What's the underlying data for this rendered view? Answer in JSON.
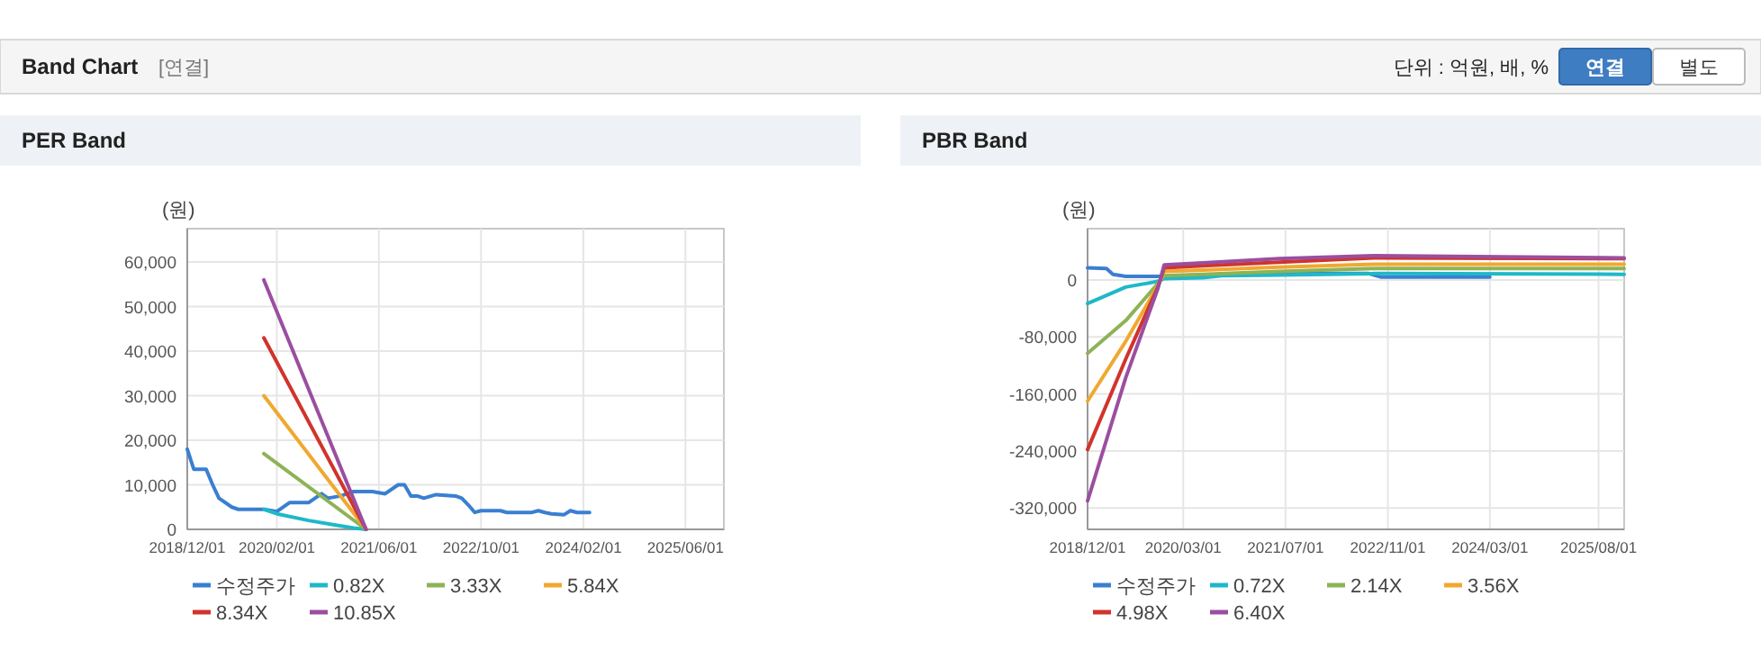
{
  "chart_data": [
    {
      "type": "other",
      "title": "Band Chart",
      "annotations": [
        "[연결]",
        "단위 : 억원, 배, %",
        "연결",
        "별도"
      ]
    },
    {
      "type": "line",
      "title": "PER Band",
      "ylabel": "(원)",
      "xlim": [
        "2018-12-01",
        "2025-12-01"
      ],
      "xticks": [
        {
          "value": "2018-12-01",
          "label": "2018/12/01"
        },
        {
          "value": "2020-02-01",
          "label": "2020/02/01"
        },
        {
          "value": "2021-06-01",
          "label": "2021/06/01"
        },
        {
          "value": "2022-10-01",
          "label": "2022/10/01"
        },
        {
          "value": "2024-02-01",
          "label": "2024/02/01"
        },
        {
          "value": "2025-06-01",
          "label": "2025/06/01"
        }
      ],
      "ylim": [
        0,
        67500
      ],
      "yticks": [
        0,
        {
          "value": 10000,
          "label": "10,000"
        },
        {
          "value": 20000,
          "label": "20,000"
        },
        {
          "value": 30000,
          "label": "30,000"
        },
        {
          "value": 40000,
          "label": "40,000"
        },
        {
          "value": 50000,
          "label": "50,000"
        },
        {
          "value": 60000,
          "label": "60,000"
        }
      ],
      "grid": true,
      "legend": "bottom",
      "marker": "none",
      "line_style": "solid",
      "series": [
        {
          "name": "수정주가",
          "color": "#3a7fd0",
          "x": [
            "2018-12-01",
            "2019-01-01",
            "2019-03-01",
            "2019-04-01",
            "2019-05-01",
            "2019-07-01",
            "2019-08-01",
            "2019-12-01",
            "2020-02-01",
            "2020-04-01",
            "2020-07-01",
            "2020-08-01",
            "2020-09-01",
            "2020-10-01",
            "2020-12-01",
            "2021-02-01",
            "2021-05-01",
            "2021-07-01",
            "2021-09-01",
            "2021-10-01",
            "2021-11-01",
            "2021-12-01",
            "2022-01-01",
            "2022-03-01",
            "2022-06-01",
            "2022-07-01",
            "2022-08-01",
            "2022-09-01",
            "2022-10-01",
            "2023-01-01",
            "2023-02-01",
            "2023-06-01",
            "2023-07-01",
            "2023-08-01",
            "2023-09-01",
            "2023-11-01",
            "2023-12-01",
            "2024-01-01",
            "2024-03-01"
          ],
          "values": [
            18000,
            13500,
            13500,
            10000,
            7000,
            5000,
            4500,
            4500,
            4000,
            6000,
            6000,
            7000,
            8000,
            7000,
            7500,
            8500,
            8500,
            8000,
            10000,
            10000,
            7500,
            7500,
            7000,
            7800,
            7500,
            7000,
            5500,
            3800,
            4200,
            4200,
            3800,
            3800,
            4200,
            3800,
            3500,
            3300,
            4200,
            3800,
            3800
          ]
        },
        {
          "name": "0.82X",
          "color": "#1fb8c8",
          "x": [
            "2019-12-01",
            "2020-02-01",
            "2020-07-01",
            "2020-11-01",
            "2021-02-01",
            "2021-04-01"
          ],
          "values": [
            4500,
            3500,
            2000,
            1000,
            300,
            0
          ]
        },
        {
          "name": "3.33X",
          "color": "#8db356",
          "x": [
            "2019-12-01",
            "2021-04-01"
          ],
          "values": [
            17000,
            0
          ]
        },
        {
          "name": "5.84X",
          "color": "#f0a830",
          "x": [
            "2019-12-01",
            "2021-04-01"
          ],
          "values": [
            30000,
            0
          ]
        },
        {
          "name": "8.34X",
          "color": "#d0342c",
          "x": [
            "2019-12-01",
            "2021-04-01"
          ],
          "values": [
            43000,
            0
          ]
        },
        {
          "name": "10.85X",
          "color": "#9b4ea0",
          "x": [
            "2019-12-01",
            "2021-04-01"
          ],
          "values": [
            56000,
            0
          ]
        }
      ]
    },
    {
      "type": "line",
      "title": "PBR Band",
      "ylabel": "(원)",
      "xlim": [
        "2018-12-01",
        "2025-12-01"
      ],
      "xticks": [
        {
          "value": "2018-12-01",
          "label": "2018/12/01"
        },
        {
          "value": "2020-03-01",
          "label": "2020/03/01"
        },
        {
          "value": "2021-07-01",
          "label": "2021/07/01"
        },
        {
          "value": "2022-11-01",
          "label": "2022/11/01"
        },
        {
          "value": "2024-03-01",
          "label": "2024/03/01"
        },
        {
          "value": "2025-08-01",
          "label": "2025/08/01"
        }
      ],
      "ylim": [
        -350000,
        72000
      ],
      "yticks": [
        {
          "value": -320000,
          "label": "-320,000"
        },
        {
          "value": -240000,
          "label": "-240,000"
        },
        {
          "value": -160000,
          "label": "-160,000"
        },
        {
          "value": -80000,
          "label": "-80,000"
        },
        0
      ],
      "grid": true,
      "legend": "bottom",
      "marker": "none",
      "line_style": "solid",
      "series": [
        {
          "name": "수정주가",
          "color": "#3a7fd0",
          "x": [
            "2018-12-01",
            "2019-03-01",
            "2019-04-01",
            "2019-06-01",
            "2019-11-01",
            "2020-02-01",
            "2020-04-01",
            "2020-09-01",
            "2021-02-01",
            "2021-09-01",
            "2022-08-01",
            "2022-10-01",
            "2023-06-01",
            "2024-03-01"
          ],
          "values": [
            17000,
            16000,
            8000,
            5000,
            5000,
            4000,
            6000,
            8000,
            7500,
            9000,
            9000,
            4000,
            4000,
            4000
          ]
        },
        {
          "name": "0.72X",
          "color": "#1fb8c8",
          "x": [
            "2018-12-01",
            "2019-06-01",
            "2019-11-01",
            "2019-12-01",
            "2020-06-01",
            "2020-09-01",
            "2021-06-01",
            "2022-09-01",
            "2025-12-01"
          ],
          "values": [
            -33000,
            -10000,
            -2000,
            2000,
            3000,
            6000,
            7000,
            9000,
            8000
          ]
        },
        {
          "name": "2.14X",
          "color": "#8db356",
          "x": [
            "2018-12-01",
            "2019-06-01",
            "2019-11-01",
            "2019-12-01",
            "2020-06-01",
            "2021-06-01",
            "2022-09-01",
            "2025-12-01"
          ],
          "values": [
            -103000,
            -57000,
            -5000,
            6000,
            8000,
            12000,
            16000,
            16000
          ]
        },
        {
          "name": "3.56X",
          "color": "#f0a830",
          "x": [
            "2018-12-01",
            "2019-06-01",
            "2019-11-01",
            "2019-12-01",
            "2020-06-01",
            "2021-06-01",
            "2022-09-01",
            "2025-12-01"
          ],
          "values": [
            -170000,
            -86000,
            -8000,
            12000,
            14000,
            18000,
            22000,
            22000
          ]
        },
        {
          "name": "4.98X",
          "color": "#d0342c",
          "x": [
            "2018-12-01",
            "2019-06-01",
            "2019-11-01",
            "2019-12-01",
            "2020-06-01",
            "2021-06-01",
            "2022-09-01",
            "2025-12-01"
          ],
          "values": [
            -238000,
            -111000,
            -10000,
            17000,
            20000,
            25000,
            31000,
            30000
          ]
        },
        {
          "name": "6.40X",
          "color": "#9b4ea0",
          "x": [
            "2018-12-01",
            "2019-06-01",
            "2019-11-01",
            "2019-12-01",
            "2020-06-01",
            "2021-06-01",
            "2022-09-01",
            "2025-12-01"
          ],
          "values": [
            -310000,
            -137000,
            -12000,
            21000,
            24000,
            30000,
            34000,
            31000
          ]
        }
      ]
    }
  ]
}
